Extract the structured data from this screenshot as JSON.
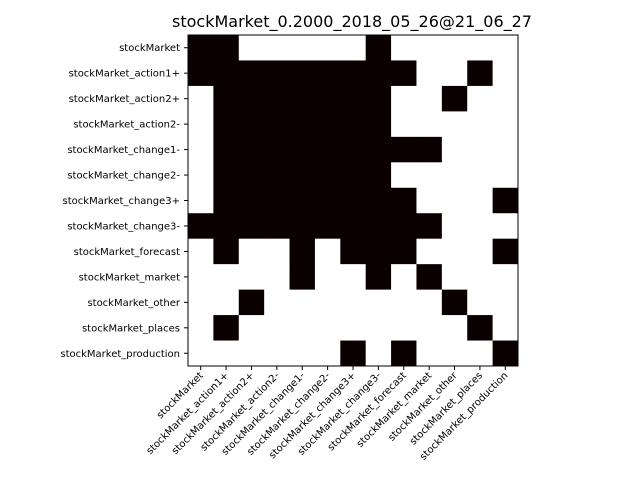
{
  "chart_data": {
    "type": "heatmap",
    "title": "stockMarket_0.2000_2018_05_26@21_06_27",
    "xlabel": "",
    "ylabel": "",
    "colormap": [
      "#ffffff",
      "#0a0000"
    ],
    "grid": false,
    "legend": "none",
    "labels": [
      "stockMarket",
      "stockMarket_action1+",
      "stockMarket_action2+",
      "stockMarket_action2-",
      "stockMarket_change1-",
      "stockMarket_change2-",
      "stockMarket_change3+",
      "stockMarket_change3-",
      "stockMarket_forecast",
      "stockMarket_market",
      "stockMarket_other",
      "stockMarket_places",
      "stockMarket_production"
    ],
    "matrix": [
      [
        1,
        1,
        0,
        0,
        0,
        0,
        0,
        1,
        0,
        0,
        0,
        0,
        0
      ],
      [
        1,
        1,
        1,
        1,
        1,
        1,
        1,
        1,
        1,
        0,
        0,
        1,
        0
      ],
      [
        0,
        1,
        1,
        1,
        1,
        1,
        1,
        1,
        0,
        0,
        1,
        0,
        0
      ],
      [
        0,
        1,
        1,
        1,
        1,
        1,
        1,
        1,
        0,
        0,
        0,
        0,
        0
      ],
      [
        0,
        1,
        1,
        1,
        1,
        1,
        1,
        1,
        1,
        1,
        0,
        0,
        0
      ],
      [
        0,
        1,
        1,
        1,
        1,
        1,
        1,
        1,
        0,
        0,
        0,
        0,
        0
      ],
      [
        0,
        1,
        1,
        1,
        1,
        1,
        1,
        1,
        1,
        0,
        0,
        0,
        1
      ],
      [
        1,
        1,
        1,
        1,
        1,
        1,
        1,
        1,
        1,
        1,
        0,
        0,
        0
      ],
      [
        0,
        1,
        0,
        0,
        1,
        0,
        1,
        1,
        1,
        0,
        0,
        0,
        1
      ],
      [
        0,
        0,
        0,
        0,
        1,
        0,
        0,
        1,
        0,
        1,
        0,
        0,
        0
      ],
      [
        0,
        0,
        1,
        0,
        0,
        0,
        0,
        0,
        0,
        0,
        1,
        0,
        0
      ],
      [
        0,
        1,
        0,
        0,
        0,
        0,
        0,
        0,
        0,
        0,
        0,
        1,
        0
      ],
      [
        0,
        0,
        0,
        0,
        0,
        0,
        1,
        0,
        1,
        0,
        0,
        0,
        1
      ]
    ]
  }
}
